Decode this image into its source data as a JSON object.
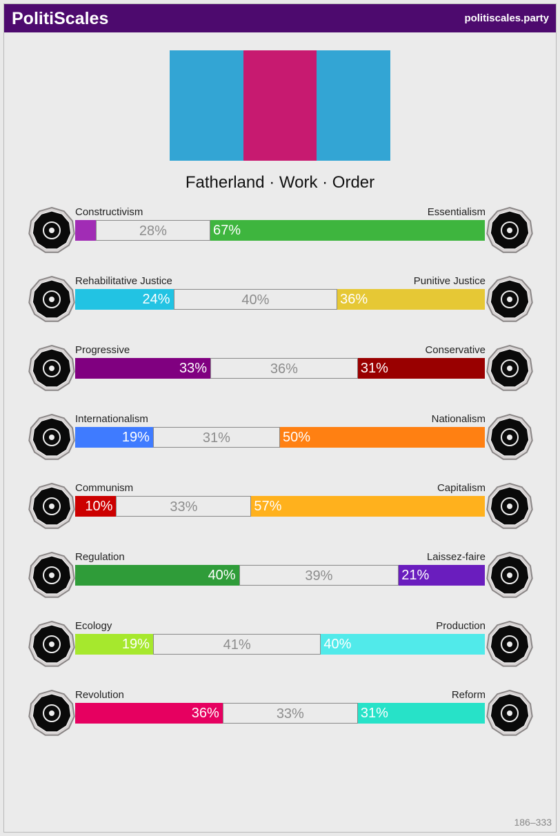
{
  "header": {
    "title": "PolitiScales",
    "site": "politiscales.party"
  },
  "flag": {
    "stripes": [
      "#33a5d4",
      "#c71a70",
      "#33a5d4"
    ]
  },
  "motto": "Fatherland · Work · Order",
  "footer": "186–333",
  "axes": [
    {
      "left": "Constructivism",
      "right": "Essentialism",
      "left_pct": 5,
      "center_pct": 28,
      "right_pct": 67,
      "left_label": "",
      "center_label": "28%",
      "right_label": "67%",
      "left_color": "#a12cb5",
      "right_color": "#3eb53e",
      "left_icon": "eye-icon",
      "right_icon": "flower-icon"
    },
    {
      "left": "Rehabilitative Justice",
      "right": "Punitive Justice",
      "left_pct": 24,
      "center_pct": 40,
      "right_pct": 36,
      "left_label": "24%",
      "center_label": "40%",
      "right_label": "36%",
      "left_color": "#22c3e3",
      "right_color": "#e6c835",
      "left_icon": "handshake-icon",
      "right_icon": "prison-bars-icon"
    },
    {
      "left": "Progressive",
      "right": "Conservative",
      "left_pct": 33,
      "center_pct": 36,
      "right_pct": 31,
      "left_label": "33%",
      "center_label": "36%",
      "right_label": "31%",
      "left_color": "#800080",
      "right_color": "#990000",
      "left_icon": "rocket-icon",
      "right_icon": "quill-icon"
    },
    {
      "left": "Internationalism",
      "right": "Nationalism",
      "left_pct": 19,
      "center_pct": 31,
      "right_pct": 50,
      "left_label": "19%",
      "center_label": "31%",
      "right_label": "50%",
      "left_color": "#3f7bff",
      "right_color": "#ff8012",
      "left_icon": "globe-icon",
      "right_icon": "flag-icon"
    },
    {
      "left": "Communism",
      "right": "Capitalism",
      "left_pct": 10,
      "center_pct": 33,
      "right_pct": 57,
      "left_label": "10%",
      "center_label": "33%",
      "right_label": "57%",
      "left_color": "#cc0000",
      "right_color": "#ffb11d",
      "left_icon": "hammer-sickle-icon",
      "right_icon": "money-bag-icon"
    },
    {
      "left": "Regulation",
      "right": "Laissez-faire",
      "left_pct": 40,
      "center_pct": 39,
      "right_pct": 21,
      "left_label": "40%",
      "center_label": "39%",
      "right_label": "21%",
      "left_color": "#2f9c39",
      "right_color": "#6a1dbe",
      "left_icon": "ruler-icon",
      "right_icon": "butterfly-icon"
    },
    {
      "left": "Ecology",
      "right": "Production",
      "left_pct": 19,
      "center_pct": 41,
      "right_pct": 40,
      "left_label": "19%",
      "center_label": "41%",
      "right_label": "40%",
      "left_color": "#a6e82d",
      "right_color": "#51eaea",
      "left_icon": "plant-icon",
      "right_icon": "gear-icon"
    },
    {
      "left": "Revolution",
      "right": "Reform",
      "left_pct": 36,
      "center_pct": 33,
      "right_pct": 31,
      "left_label": "36%",
      "center_label": "33%",
      "right_label": "31%",
      "left_color": "#e60060",
      "right_color": "#27e2c8",
      "left_icon": "fist-icon",
      "right_icon": "boat-icon"
    }
  ]
}
